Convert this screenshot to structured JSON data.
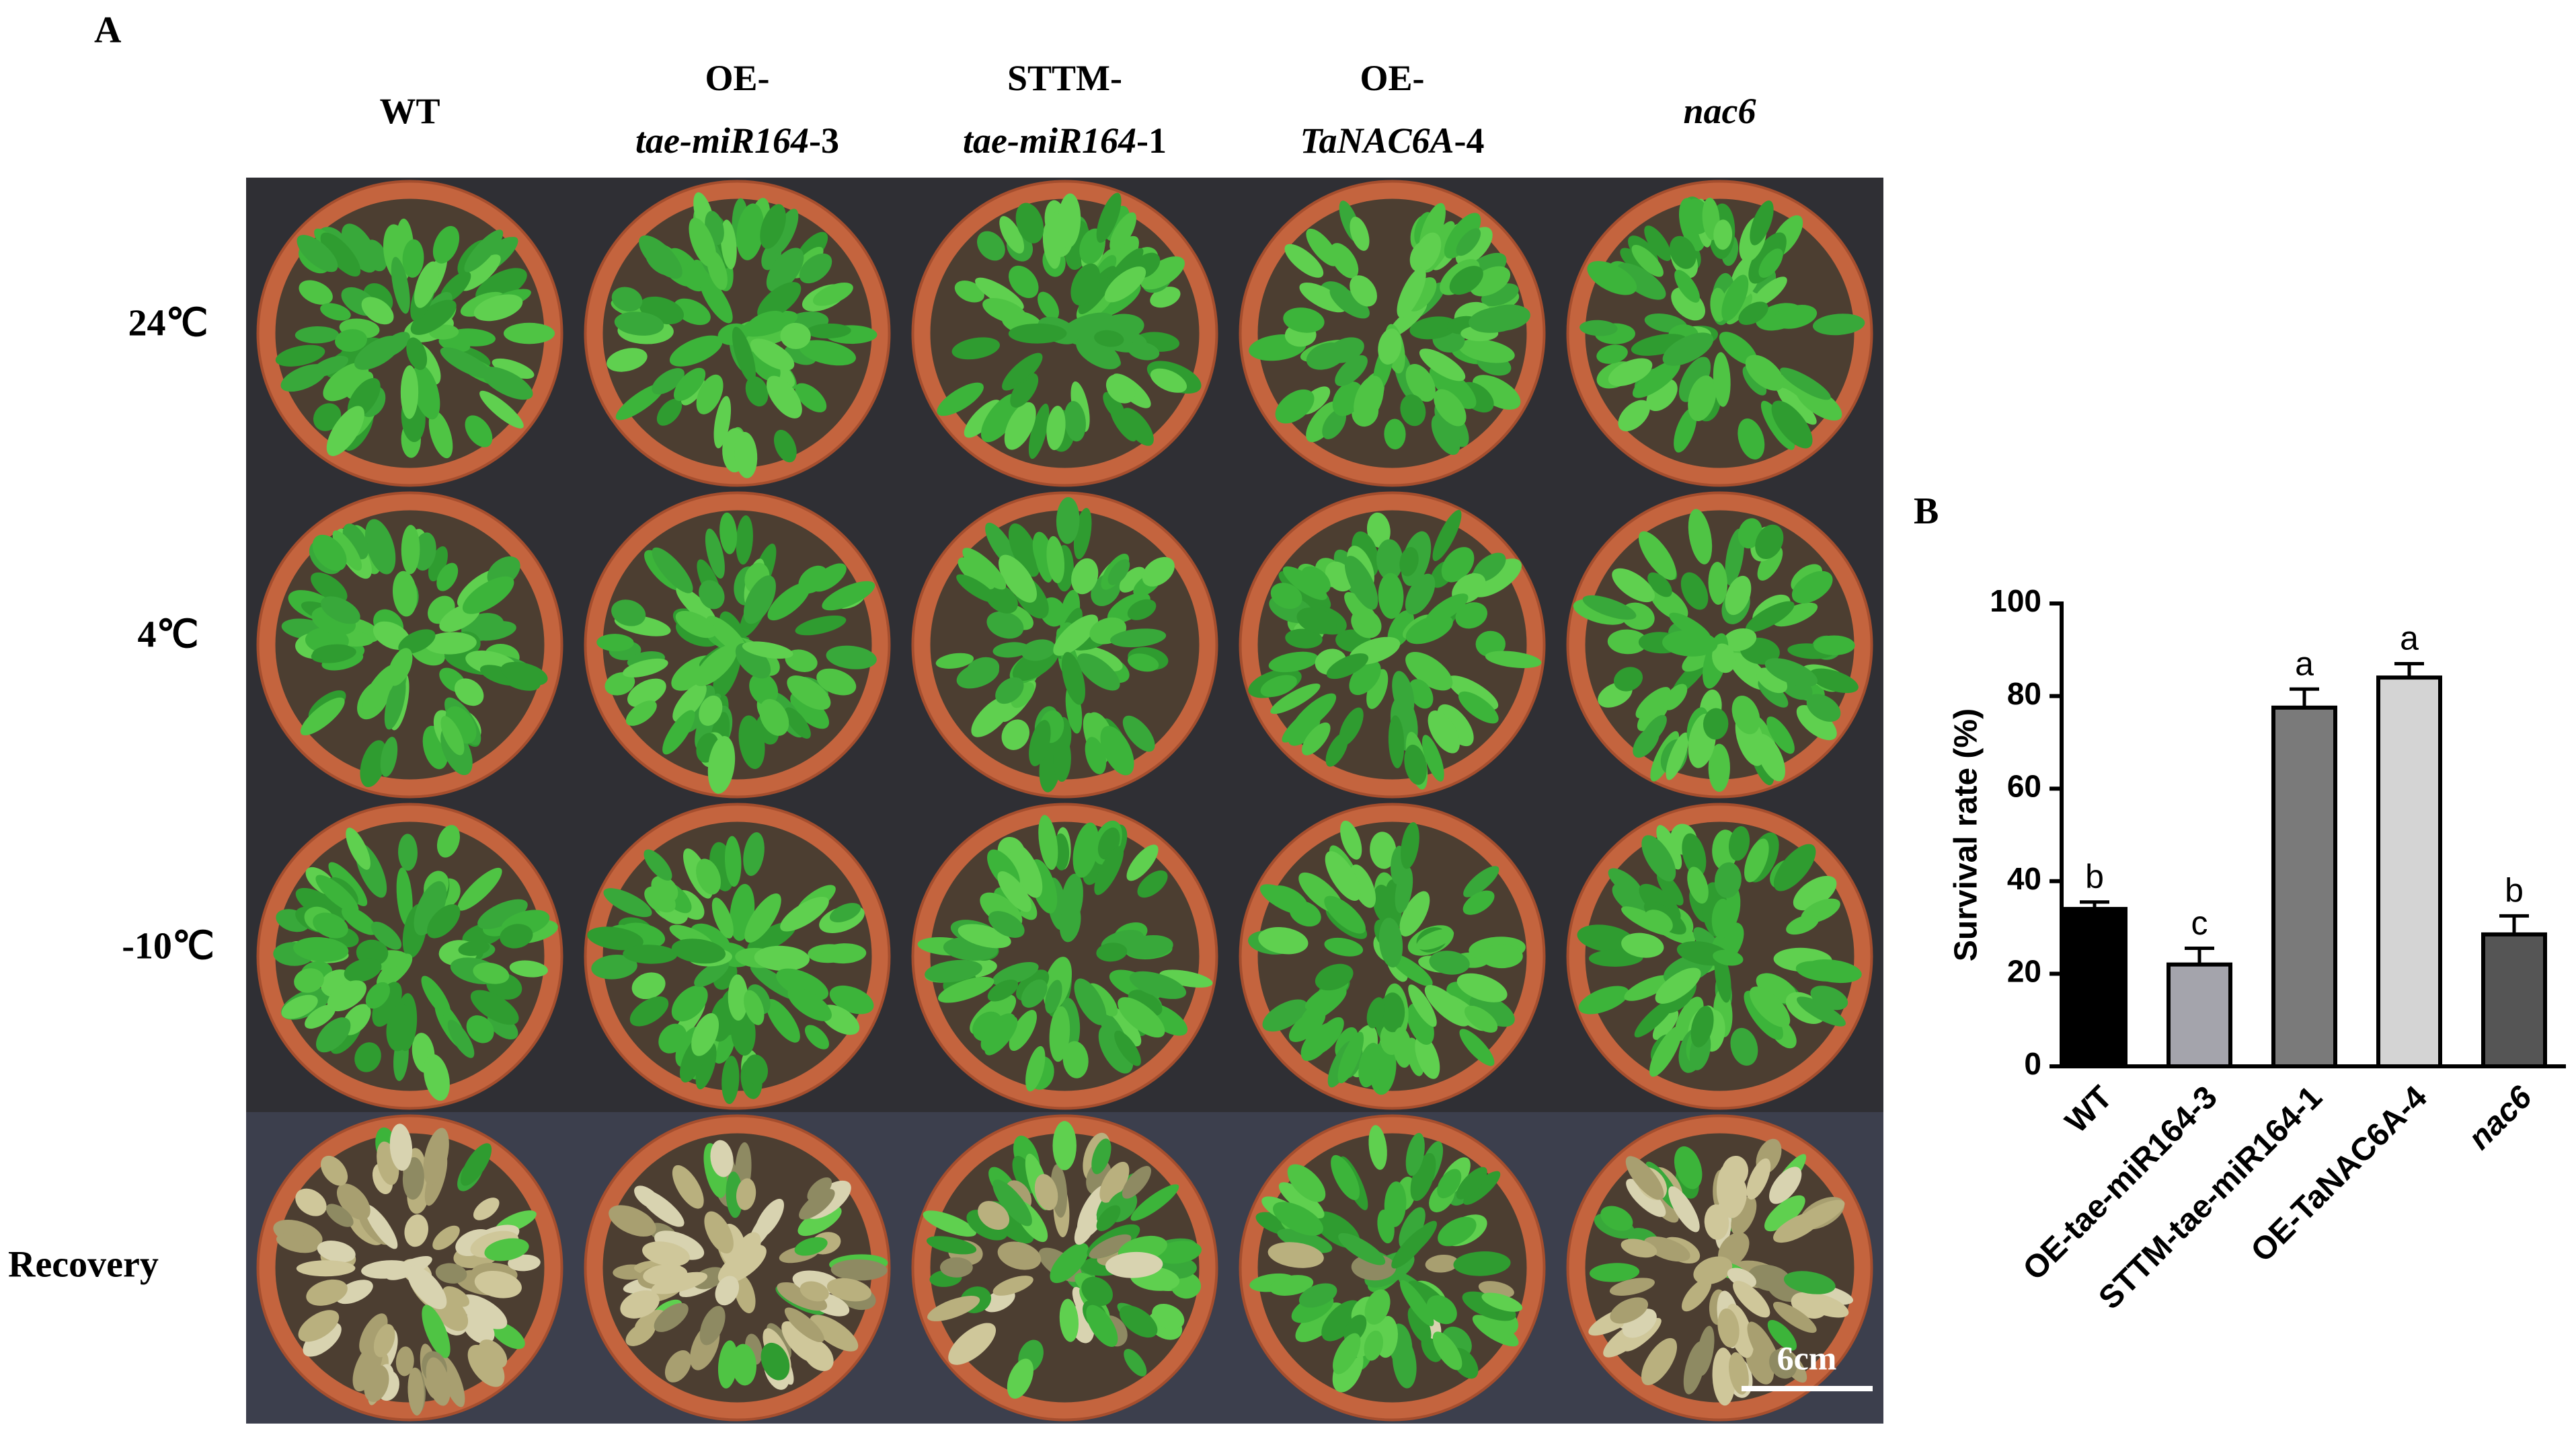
{
  "panel_a": {
    "label": "A",
    "columns": [
      [
        [
          {
            "text": "WT"
          }
        ]
      ],
      [
        [
          {
            "text": "OE-"
          }
        ],
        [
          {
            "text": "tae-miR164",
            "italic": true
          },
          {
            "text": "-3"
          }
        ]
      ],
      [
        [
          {
            "text": "STTM-"
          }
        ],
        [
          {
            "text": "tae-miR164",
            "italic": true
          },
          {
            "text": "-1"
          }
        ]
      ],
      [
        [
          {
            "text": "OE-"
          }
        ],
        [
          {
            "text": "TaNAC6A",
            "italic": true
          },
          {
            "text": "-4"
          }
        ]
      ],
      [
        [
          {
            "text": "nac6",
            "italic": true
          }
        ]
      ]
    ],
    "rows": [
      "24℃",
      "4℃",
      "-10℃",
      "Recovery"
    ],
    "scale_bar": "6cm"
  },
  "chart_data": {
    "type": "bar",
    "panel_label": "B",
    "y_label": "Survival rate (%)",
    "categories": [
      "WT",
      "OE-tae-miR164-3",
      "STTM-tae-miR164-1",
      "OE-TaNAC6A-4",
      "nac6"
    ],
    "values": [
      34,
      22,
      77.5,
      84,
      28.5
    ],
    "errors": [
      1.5,
      3.5,
      4,
      3,
      4
    ],
    "annotations": [
      "b",
      "c",
      "a",
      "a",
      "b"
    ],
    "colors": [
      "#000000",
      "#a4a4ac",
      "#7a7a7a",
      "#d4d4d4",
      "#555555"
    ],
    "ylim": [
      0,
      100
    ],
    "yticks": [
      0,
      20,
      40,
      60,
      80,
      100
    ]
  }
}
